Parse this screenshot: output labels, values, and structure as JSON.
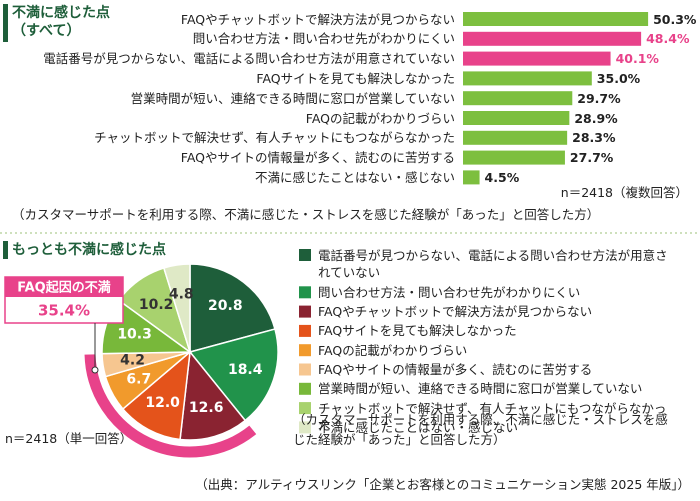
{
  "chart_data": [
    {
      "type": "bar",
      "orientation": "horizontal",
      "title": "不満に感じた点\n（すべて）",
      "categories": [
        "FAQやチャットボットで解決方法が見つからない",
        "問い合わせ方法・問い合わせ先がわかりにくい",
        "電話番号が見つからない、電話による問い合わせ方法が用意されていない",
        "FAQサイトを見ても解決しなかった",
        "営業時間が短い、連絡できる時間に窓口が営業していない",
        "FAQの記載がわかりづらい",
        "チャットボットで解決せず、有人チャットにもつながらなかった",
        "FAQやサイトの情報量が多く、読むのに苦労する",
        "不満に感じたことはない・感じない"
      ],
      "values": [
        50.3,
        48.4,
        40.1,
        35.0,
        29.7,
        28.9,
        28.3,
        27.7,
        4.5
      ],
      "value_labels": [
        "50.3%",
        "48.4%",
        "40.1%",
        "35.0%",
        "29.7%",
        "28.9%",
        "28.3%",
        "27.7%",
        "4.5%"
      ],
      "colors": [
        "#7dbf3f",
        "#e8428a",
        "#e8428a",
        "#7dbf3f",
        "#7dbf3f",
        "#7dbf3f",
        "#7dbf3f",
        "#7dbf3f",
        "#7dbf3f"
      ],
      "value_label_colors": [
        "#222222",
        "#e8428a",
        "#e8428a",
        "#222222",
        "#222222",
        "#222222",
        "#222222",
        "#222222",
        "#222222"
      ],
      "note": "n＝2418（複数回答）",
      "footnote": "（カスタマーサポートを利用する際、不満に感じた・ストレスを感じた経験が「あった」と回答した方）"
    },
    {
      "type": "pie",
      "title": "もっとも不満に感じた点",
      "categories": [
        "電話番号が見つからない、電話による問い合わせ方法が用意されていない",
        "問い合わせ方法・問い合わせ先がわかりにくい",
        "FAQやチャットボットで解決方法が見つからない",
        "FAQサイトを見ても解決しなかった",
        "FAQの記載がわかりづらい",
        "FAQやサイトの情報量が多く、読むのに苦労する",
        "営業時間が短い、連絡できる時間に窓口が営業していない",
        "チャットボットで解決せず、有人チャットにもつながらなかった",
        "不満に感じたことはない・感じない"
      ],
      "values": [
        20.8,
        18.4,
        12.6,
        12.0,
        6.7,
        4.2,
        10.3,
        10.2,
        4.8
      ],
      "value_labels": [
        "20.8",
        "18.4",
        "12.6",
        "12.0",
        "6.7",
        "4.2",
        "10.3",
        "10.2",
        "4.8"
      ],
      "colors": [
        "#1e5e3a",
        "#21934b",
        "#8a2331",
        "#e4531b",
        "#f19a2c",
        "#f6c690",
        "#78b83a",
        "#a8d26e",
        "#dfe9c6"
      ],
      "highlight": {
        "label": "FAQ起因の不満",
        "value": 35.4,
        "value_label": "35.4%",
        "color": "#e8428a"
      },
      "note": "n＝2418（単一回答）",
      "footnote": "（カスタマーサポートを利用する際、不満に感じた・ストレスを感じた経験が「あった」と回答した方）"
    }
  ],
  "source": "（出典：アルティウスリンク「企業とお客様とのコミュニケーション実態 2025 年版」）"
}
